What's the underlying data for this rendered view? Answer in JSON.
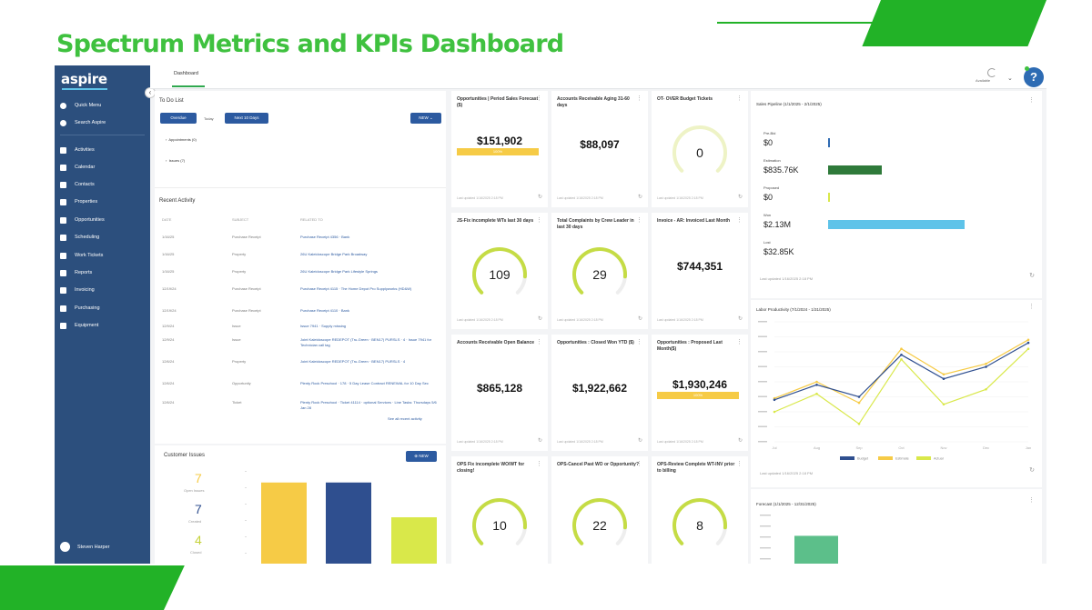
{
  "slide": {
    "title": "Spectrum Metrics and KPIs Dashboard"
  },
  "colors": {
    "brand_green": "#3fc13f",
    "sidebar": "#2c4f7d",
    "primary_button": "#2c5aa0",
    "gauge_green": "#c5dc45",
    "budget_blue": "#2f4f8f",
    "estimate_yellow": "#f6cb46",
    "actual_lime": "#d9e84a"
  },
  "app": {
    "logo": "aspire",
    "tab": "Dashboard",
    "user_menu": "Available",
    "help": "?",
    "sidebar": {
      "items": [
        {
          "label": "Quick Menu",
          "icon": "star-icon"
        },
        {
          "label": "Search Aspire",
          "icon": "search-icon"
        },
        {
          "label": "Activities",
          "icon": "activities-icon"
        },
        {
          "label": "Calendar",
          "icon": "calendar-icon"
        },
        {
          "label": "Contacts",
          "icon": "contacts-icon"
        },
        {
          "label": "Properties",
          "icon": "properties-icon"
        },
        {
          "label": "Opportunities",
          "icon": "opportunities-icon"
        },
        {
          "label": "Scheduling",
          "icon": "scheduling-icon"
        },
        {
          "label": "Work Tickets",
          "icon": "ticket-icon"
        },
        {
          "label": "Reports",
          "icon": "reports-icon"
        },
        {
          "label": "Invoicing",
          "icon": "invoice-icon"
        },
        {
          "label": "Purchasing",
          "icon": "purchasing-icon"
        },
        {
          "label": "Equipment",
          "icon": "equipment-icon"
        }
      ],
      "user": "Steven Harper"
    }
  },
  "todo": {
    "title": "To Do List",
    "btn_overdue": "Overdue",
    "btn_today": "Today",
    "btn_next": "Next 10 Days",
    "btn_new": "NEW",
    "groups": [
      "Appointments (0)",
      "Issues (7)"
    ]
  },
  "recent": {
    "title": "Recent Activity",
    "headers": [
      "DATE",
      "SUBJECT",
      "RELATED TO"
    ],
    "rows": [
      {
        "date": "1/16/25",
        "subject": "Purchase Receipt",
        "related": "Purchase Receipt 4356 · Bank"
      },
      {
        "date": "1/16/25",
        "subject": "Property",
        "related": "26U Kaleidoscope Bridge Park Broadway"
      },
      {
        "date": "1/16/25",
        "subject": "Property",
        "related": "26U Kaleidoscope Bridge Park Lifestyle Springs"
      },
      {
        "date": "12/19/24",
        "subject": "Purchase Receipt",
        "related": "Purchase Receipt 4115 · The Home Depot Pro Supplyworks (HD&W)"
      },
      {
        "date": "12/19/24",
        "subject": "Purchase Receipt",
        "related": "Purchase Receipt 4110 · Bank"
      },
      {
        "date": "12/9/24",
        "subject": "Issue",
        "related": "Issue 7941 · Supply missing"
      },
      {
        "date": "12/9/24",
        "subject": "Issue",
        "related": "Joint Kaleidoscope REDEPOT (Tru-Green · BEN17) PURSLS · 4 · Issue 7941 for Technician call tag"
      },
      {
        "date": "12/6/24",
        "subject": "Property",
        "related": "Joint Kaleidoscope REDEPOT (Tru-Green · BEN17) PURSLS · 4"
      },
      {
        "date": "12/6/24",
        "subject": "Opportunity",
        "related": "Plenty Rock Preschool · 178 · 5 Day Lease Contract RENEWAL for 10 Day Sec"
      },
      {
        "date": "12/6/24",
        "subject": "Ticket",
        "related": "Plenty Rock Preschool · Ticket 41114 · optional Services · Line Tasks: Thursdays 5/6 Jan 28"
      }
    ],
    "see_all": "See all recent activity"
  },
  "customer_issues": {
    "title": "Customer Issues",
    "btn_new": "NEW",
    "counts": [
      {
        "value": "7",
        "label": "Open Issues",
        "color": "#f6cb46"
      },
      {
        "value": "7",
        "label": "Created",
        "color": "#2f4f8f"
      },
      {
        "value": "4",
        "label": "Closed",
        "color": "#d9e84a"
      }
    ]
  },
  "kpi_cards": [
    {
      "title": "Opportunities | Period Sales Forecast ($)",
      "value": "$151,902",
      "kind": "bar",
      "bar_text": "100%",
      "foot": "Last updated 1/16/2025 2:18 PM"
    },
    {
      "title": "Accounts Receivable Aging 31-60 days",
      "value": "$88,097",
      "kind": "plain",
      "foot": "Last updated 1/16/2025 2:18 PM"
    },
    {
      "title": "OT- OVER Budget Tickets",
      "value": "0",
      "kind": "gauge",
      "gauge_frac": 0.0,
      "foot": "Last updated 1/16/2025 2:18 PM"
    },
    {
      "title": "JS-Fix incomplete WTs last 30 days",
      "value": "109",
      "kind": "gauge",
      "gauge_frac": 0.85,
      "foot": "Last updated 1/16/2025 2:18 PM"
    },
    {
      "title": "Total Complaints by Crew Leader in last 30 days",
      "value": "29",
      "kind": "gauge",
      "gauge_frac": 0.85,
      "foot": "Last updated 1/16/2025 2:18 PM"
    },
    {
      "title": "Invoice - AR: Invoiced Last Month",
      "value": "$744,351",
      "kind": "plain",
      "foot": "Last updated 1/16/2025 2:18 PM"
    },
    {
      "title": "Accounts Receivable Open Balance",
      "value": "$865,128",
      "kind": "plain",
      "foot": "Last updated 1/16/2025 2:18 PM"
    },
    {
      "title": "Opportunities : Closed Won YTD ($)",
      "value": "$1,922,662",
      "kind": "plain",
      "foot": "Last updated 1/16/2025 2:18 PM"
    },
    {
      "title": "Opportunities : Proposed Last Month($)",
      "value": "$1,930,246",
      "kind": "bar",
      "bar_text": "100%",
      "foot": "Last updated 1/16/2025 2:18 PM"
    },
    {
      "title": "OPS Fix incomplete WO/WT for closing!",
      "value": "10",
      "kind": "gauge",
      "gauge_frac": 0.85,
      "foot": ""
    },
    {
      "title": "OPS-Cancel Past WO or Opportunity?",
      "value": "22",
      "kind": "gauge",
      "gauge_frac": 0.85,
      "foot": ""
    },
    {
      "title": "OPS-Review Complete WT-INV prior to billing",
      "value": "8",
      "kind": "gauge",
      "gauge_frac": 0.85,
      "foot": ""
    }
  ],
  "sales_pipeline": {
    "title": "Sales Pipeline (1/1/2025 - 2/1/2025)",
    "foot": "Last updated 1/16/2025 2:18 PM",
    "stages": [
      {
        "label": "Pre-Bid",
        "value": "$0",
        "frac": 0.0,
        "color": "#2f6bb3"
      },
      {
        "label": "Estimation",
        "value": "$835.76K",
        "frac": 0.39,
        "color": "#2f7a3a"
      },
      {
        "label": "Proposed",
        "value": "$0",
        "frac": 0.0,
        "color": "#d9e84a"
      },
      {
        "label": "Won",
        "value": "$2.13M",
        "frac": 1.0,
        "color": "#5ec3e9"
      },
      {
        "label": "Lost",
        "value": "$32.85K",
        "frac": 0.0,
        "color": "#999999"
      }
    ]
  },
  "labor_chart_title": "Labor Productivity (7/1/2024 - 1/31/2025)",
  "labor_foot": "Last updated 1/16/2025 2:18 PM",
  "forecast": {
    "title": "Forecast (1/1/2025 - 12/31/2025)"
  },
  "chart_data": [
    {
      "type": "line",
      "title": "Labor Productivity (7/1/2024 - 1/31/2025)",
      "categories": [
        "Jul",
        "Aug",
        "Sep",
        "Oct",
        "Nov",
        "Dec",
        "Jan"
      ],
      "ylim": [
        0,
        80
      ],
      "series": [
        {
          "name": "Budget",
          "color": "#2f4f8f",
          "values": [
            28,
            38,
            30,
            58,
            42,
            50,
            66
          ]
        },
        {
          "name": "Estimate",
          "color": "#f6cb46",
          "values": [
            29,
            40,
            26,
            62,
            45,
            52,
            68
          ]
        },
        {
          "name": "Actual",
          "color": "#d9e84a",
          "values": [
            20,
            32,
            12,
            55,
            25,
            35,
            62
          ]
        }
      ]
    },
    {
      "type": "bar",
      "title": "Customer Issues",
      "categories": [
        "Open Issues",
        "Created",
        "Closed"
      ],
      "values": [
        7,
        7,
        4
      ],
      "ylim": [
        0,
        8
      ]
    },
    {
      "type": "bar",
      "title": "Forecast (1/1/2025 - 12/31/2025)",
      "categories": [
        "Jan"
      ],
      "values": [
        2000000
      ],
      "ylim": [
        0,
        6000000
      ]
    }
  ]
}
